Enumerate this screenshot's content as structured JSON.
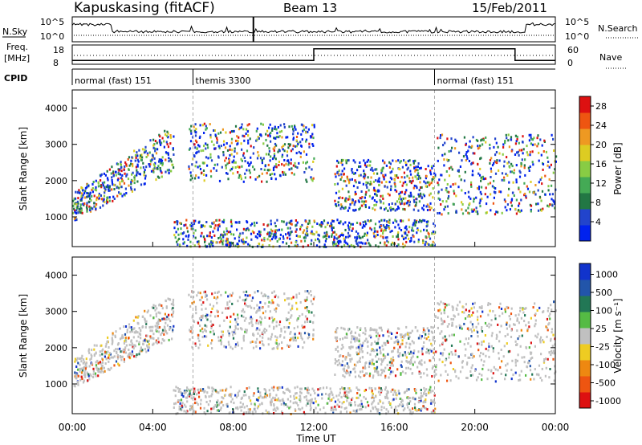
{
  "header": {
    "title": "Kapuskasing (fitACF)",
    "beam": "Beam 13",
    "date": "15/Feb/2011"
  },
  "nsky_panel": {
    "left_label": "N.Sky",
    "right_label": "N.Search",
    "right_legend_style": "dotted",
    "left_ticks": [
      "10^5",
      "10^0"
    ],
    "right_ticks": [
      "10^5",
      "10^0"
    ]
  },
  "freq_panel": {
    "left_label_line1": "Freq.",
    "left_label_line2": "[MHz]",
    "right_label": "Nave",
    "right_legend_style": "dotted",
    "left_ticks": [
      "18",
      "8"
    ],
    "right_ticks": [
      "60",
      "0"
    ],
    "freq_steps": [
      {
        "from_hour": 0,
        "to_hour": 12,
        "mhz": 10
      },
      {
        "from_hour": 12,
        "to_hour": 22,
        "mhz": 16
      },
      {
        "from_hour": 22,
        "to_hour": 24,
        "mhz": 10
      }
    ]
  },
  "cpid": {
    "label": "CPID",
    "segments": [
      {
        "start_hour": 0,
        "name": "normal (fast) 151"
      },
      {
        "start_hour": 6,
        "name": "themis 3300"
      },
      {
        "start_hour": 18,
        "name": "normal (fast) 151"
      }
    ]
  },
  "chart_data": [
    {
      "type": "heatmap",
      "parameter": "Power",
      "ylabel": "Slant Range [km]",
      "xlabel": "",
      "xlim": [
        "00:00",
        "24:00"
      ],
      "ylim": [
        180,
        4500
      ],
      "yticks": [
        "1000",
        "2000",
        "3000",
        "4000"
      ],
      "colorbar": {
        "label": "Power [dB]",
        "ticks": [
          "4",
          "8",
          "12",
          "16",
          "20",
          "24",
          "28"
        ],
        "range": [
          0,
          30
        ],
        "colors": [
          "#0022ee",
          "#2244cc",
          "#227744",
          "#44aa55",
          "#88cc44",
          "#ddcc22",
          "#ee9922",
          "#ee5511",
          "#dd1111"
        ]
      },
      "backscatter_regions": [
        {
          "x_range": [
            "00:00",
            "05:00"
          ],
          "range_km": [
            900,
            3400
          ],
          "note": "arc rising from ~1000 km to ~3300 km"
        },
        {
          "x_range": [
            "05:45",
            "12:00"
          ],
          "range_km": [
            2000,
            3600
          ]
        },
        {
          "x_range": [
            "05:00",
            "18:00"
          ],
          "range_km": [
            200,
            950
          ],
          "note": "near-range ground scatter"
        },
        {
          "x_range": [
            "13:00",
            "18:00"
          ],
          "range_km": [
            1200,
            2600
          ]
        },
        {
          "x_range": [
            "18:00",
            "24:00"
          ],
          "range_km": [
            1100,
            3300
          ]
        }
      ]
    },
    {
      "type": "heatmap",
      "parameter": "Velocity",
      "ylabel": "Slant Range [km]",
      "xlabel": "Time UT",
      "xlim": [
        "00:00",
        "24:00"
      ],
      "ylim": [
        180,
        4500
      ],
      "xticks": [
        "00:00",
        "04:00",
        "08:00",
        "12:00",
        "16:00",
        "20:00",
        "00:00"
      ],
      "yticks": [
        "1000",
        "2000",
        "3000",
        "4000"
      ],
      "colorbar": {
        "label": "Velocity [m s⁻¹]",
        "ticks": [
          "1000",
          "500",
          "100",
          "25",
          "-25",
          "-100",
          "-500",
          "-1000"
        ],
        "colors": [
          "#1133cc",
          "#2255aa",
          "#227755",
          "#55bb44",
          "#c0c0c0",
          "#eecc22",
          "#ee8811",
          "#ee5511",
          "#dd1111"
        ]
      },
      "ground_scatter_color": "#c0c0c0"
    }
  ]
}
